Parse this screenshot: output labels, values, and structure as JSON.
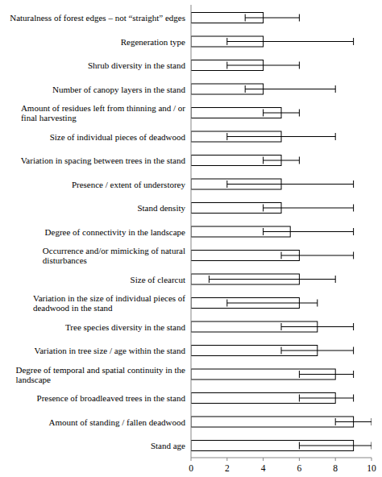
{
  "chart_data": {
    "type": "bar",
    "orientation": "horizontal",
    "color": "#ffffff",
    "categories": [
      "Naturalness of forest edges – not “straight” edges",
      "Regeneration type",
      "Shrub diversity in the stand",
      "Number of canopy layers in the stand",
      "Amount of residues left from thinning and / or final harvesting",
      "Size of individual pieces of deadwood",
      "Variation in spacing between trees in the stand",
      "Presence / extent of understorey",
      "Stand density",
      "Degree of connectivity in the landscape",
      "Occurrence and/or mimicking of natural disturbances",
      "Size of clearcut",
      "Variation in the size of individual pieces of deadwood in the stand",
      "Tree species diversity in the stand",
      "Variation in tree size / age within the stand",
      "Degree of temporal and spatial continuity in the landscape",
      "Presence of broadleaved trees in the stand",
      "Amount of standing / fallen deadwood",
      "Stand age"
    ],
    "values": [
      4,
      4,
      4,
      4,
      5,
      5,
      5,
      5,
      5,
      5.5,
      6,
      6,
      6,
      7,
      7,
      8,
      8,
      9,
      9
    ],
    "error_low": [
      3,
      2,
      2,
      3,
      4,
      2,
      4,
      2,
      4,
      4,
      5,
      1,
      2,
      5,
      5,
      6,
      6,
      8,
      6
    ],
    "error_high": [
      6,
      9,
      6,
      8,
      6,
      8,
      6,
      9,
      9,
      9,
      9,
      8,
      7,
      9,
      9,
      9,
      9,
      10,
      10
    ],
    "xlim": [
      0,
      10
    ],
    "xticks": [
      0,
      2,
      4,
      6,
      8,
      10
    ],
    "grid": false
  }
}
